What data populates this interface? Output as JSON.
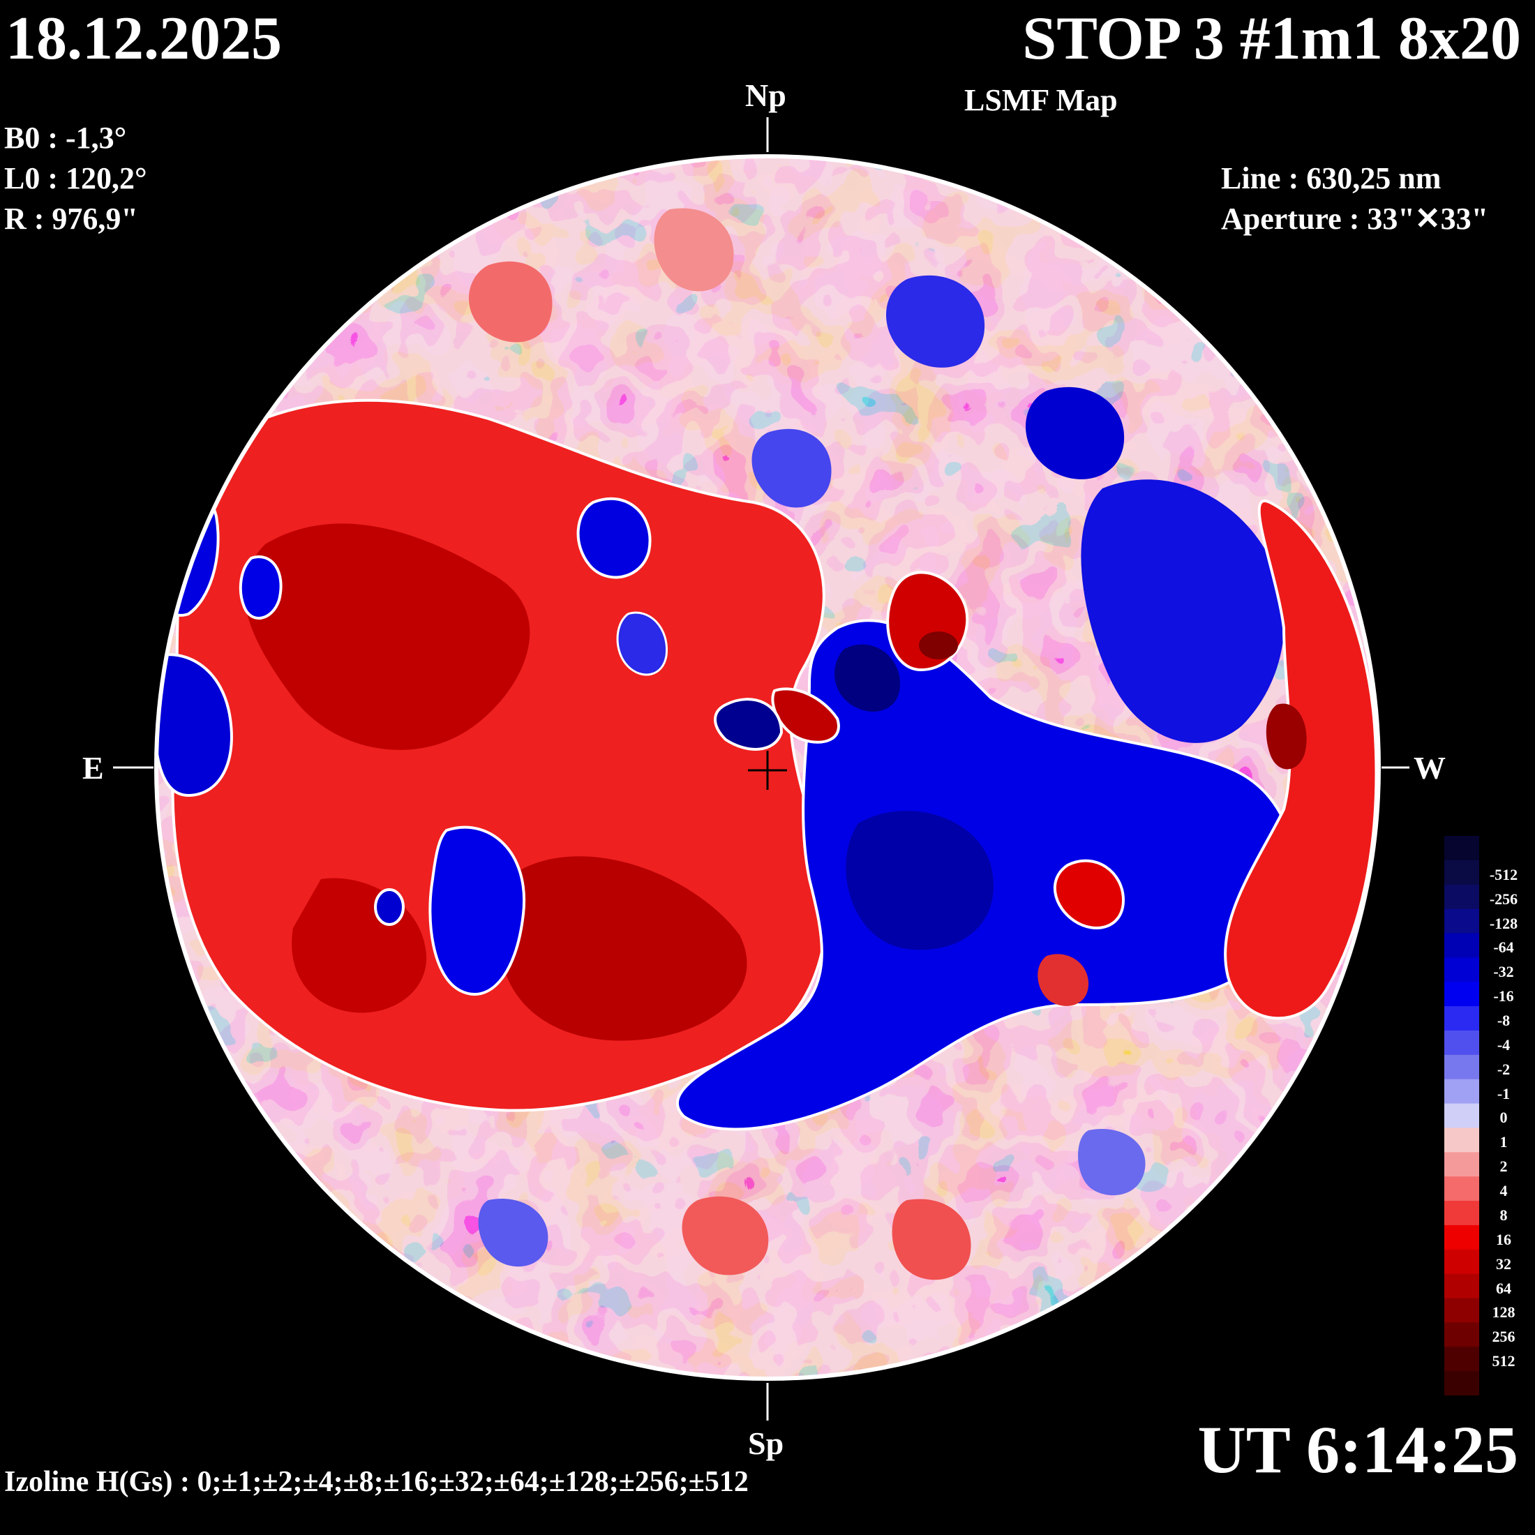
{
  "header": {
    "date": "18.12.2025",
    "title": "STOP 3 #1m1 8x20",
    "subtitle": "LSMF  Map"
  },
  "params_left": [
    "B0 : -1,3°",
    "L0 : 120,2°",
    "R  : 976,9\""
  ],
  "params_right": [
    "Line :  630,25 nm",
    "Aperture : 33\"✕33\""
  ],
  "directions": {
    "north": "Np",
    "south": "Sp",
    "east": "E",
    "west": "W"
  },
  "time": "UT 6:14:25",
  "izoline": "Izoline H(Gs) : 0;±1;±2;±4;±8;±16;±32;±64;±128;±256;±512",
  "colorbar": {
    "levels": [
      {
        "label": "-512",
        "color": "#0a0a45"
      },
      {
        "label": "-256",
        "color": "#0b0b63"
      },
      {
        "label": "-128",
        "color": "#0a0a8c"
      },
      {
        "label": "-64",
        "color": "#0000b4"
      },
      {
        "label": "-32",
        "color": "#0000d4"
      },
      {
        "label": "-16",
        "color": "#0000f0"
      },
      {
        "label": "-8",
        "color": "#2a2af2"
      },
      {
        "label": "-4",
        "color": "#5050ee"
      },
      {
        "label": "-2",
        "color": "#7878ee"
      },
      {
        "label": "-1",
        "color": "#a0a0f4"
      },
      {
        "label": "0",
        "color": "#cfcff7"
      },
      {
        "label": "1",
        "color": "#f7c8c8"
      },
      {
        "label": "2",
        "color": "#f59a9a"
      },
      {
        "label": "4",
        "color": "#f56a6a"
      },
      {
        "label": "8",
        "color": "#f03a3a"
      },
      {
        "label": "16",
        "color": "#ee0000"
      },
      {
        "label": "32",
        "color": "#cf0000"
      },
      {
        "label": "64",
        "color": "#b00000"
      },
      {
        "label": "128",
        "color": "#8e0000"
      },
      {
        "label": "256",
        "color": "#6e0000"
      },
      {
        "label": "512",
        "color": "#4e0000"
      }
    ],
    "extra_top": "#050530",
    "extra_bottom": "#3a0000"
  }
}
